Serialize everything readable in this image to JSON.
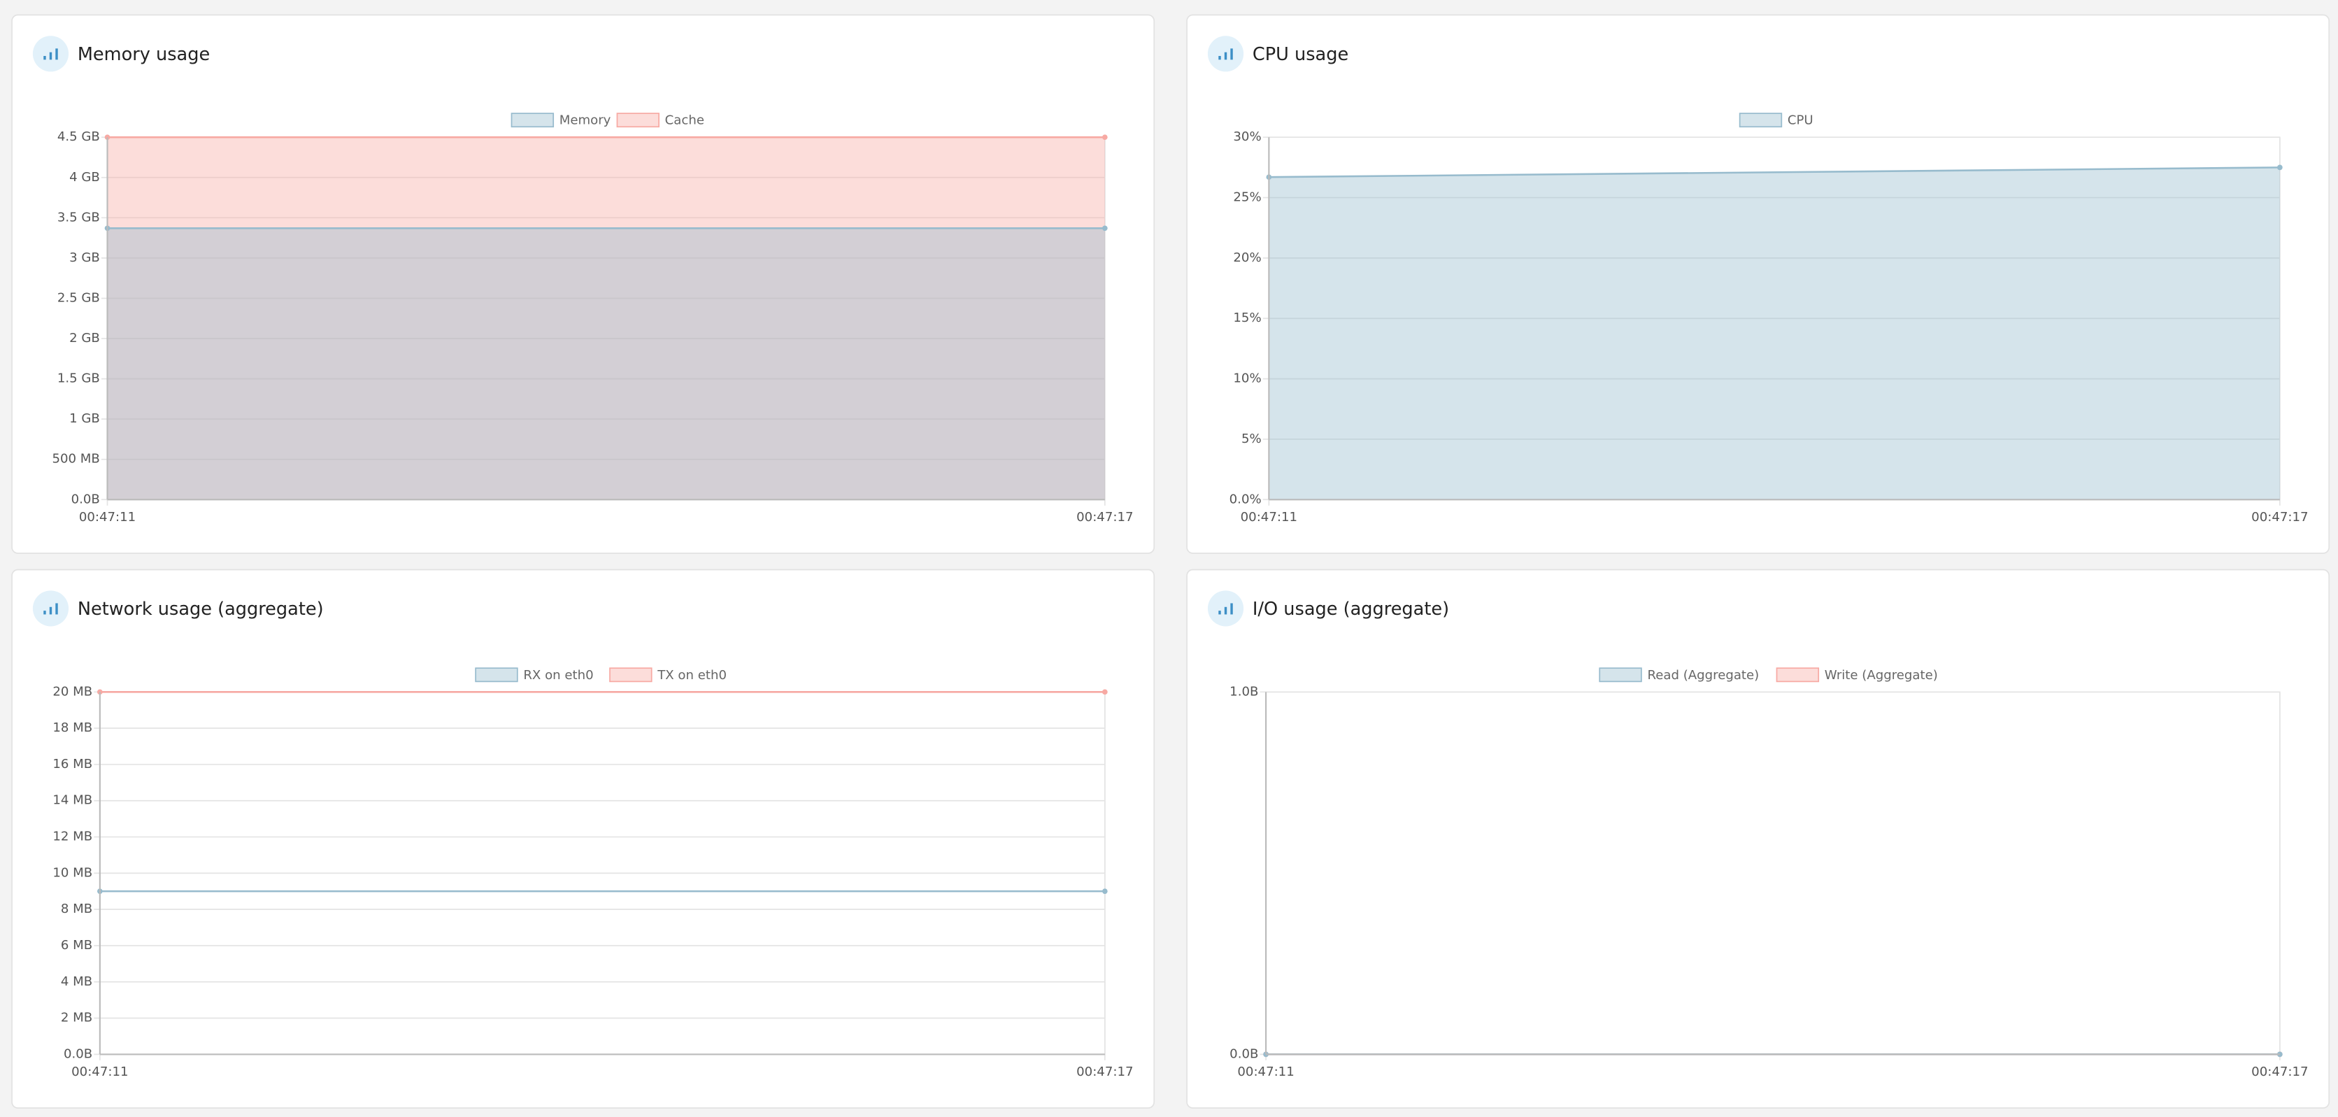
{
  "chart_data": [
    {
      "type": "line",
      "title": "Memory usage",
      "categories": [
        "00:47:11",
        "00:47:17"
      ],
      "series": [
        {
          "name": "Memory",
          "color": "#97bbcd",
          "fill": true,
          "values": [
            3.37,
            3.37
          ]
        },
        {
          "name": "Cache",
          "color": "#f7a9a3",
          "fill": true,
          "values": [
            4.5,
            4.5
          ]
        }
      ],
      "ylim": [
        0,
        4.5
      ],
      "yticks": [
        {
          "value": 0,
          "label": "0.0B"
        },
        {
          "value": 0.5,
          "label": "500 MB"
        },
        {
          "value": 1,
          "label": "1 GB"
        },
        {
          "value": 1.5,
          "label": "1.5 GB"
        },
        {
          "value": 2,
          "label": "2 GB"
        },
        {
          "value": 2.5,
          "label": "2.5 GB"
        },
        {
          "value": 3,
          "label": "3 GB"
        },
        {
          "value": 3.5,
          "label": "3.5 GB"
        },
        {
          "value": 4,
          "label": "4 GB"
        },
        {
          "value": 4.5,
          "label": "4.5 GB"
        }
      ],
      "grid": true
    },
    {
      "type": "line",
      "title": "CPU usage",
      "categories": [
        "00:47:11",
        "00:47:17"
      ],
      "series": [
        {
          "name": "CPU",
          "color": "#97bbcd",
          "fill": true,
          "values": [
            26.7,
            27.5
          ]
        }
      ],
      "ylim": [
        0,
        30
      ],
      "yticks": [
        {
          "value": 0,
          "label": "0.0%"
        },
        {
          "value": 5,
          "label": "5%"
        },
        {
          "value": 10,
          "label": "10%"
        },
        {
          "value": 15,
          "label": "15%"
        },
        {
          "value": 20,
          "label": "20%"
        },
        {
          "value": 25,
          "label": "25%"
        },
        {
          "value": 30,
          "label": "30%"
        }
      ],
      "grid": true
    },
    {
      "type": "line",
      "title": "Network usage (aggregate)",
      "categories": [
        "00:47:11",
        "00:47:17"
      ],
      "series": [
        {
          "name": "RX on eth0",
          "color": "#97bbcd",
          "fill": false,
          "values": [
            9,
            9
          ]
        },
        {
          "name": "TX on eth0",
          "color": "#f7a9a3",
          "fill": false,
          "values": [
            20,
            20
          ]
        }
      ],
      "ylim": [
        0,
        20
      ],
      "yticks": [
        {
          "value": 0,
          "label": "0.0B"
        },
        {
          "value": 2,
          "label": "2 MB"
        },
        {
          "value": 4,
          "label": "4 MB"
        },
        {
          "value": 6,
          "label": "6 MB"
        },
        {
          "value": 8,
          "label": "8 MB"
        },
        {
          "value": 10,
          "label": "10 MB"
        },
        {
          "value": 12,
          "label": "12 MB"
        },
        {
          "value": 14,
          "label": "14 MB"
        },
        {
          "value": 16,
          "label": "16 MB"
        },
        {
          "value": 18,
          "label": "18 MB"
        },
        {
          "value": 20,
          "label": "20 MB"
        }
      ],
      "grid": true
    },
    {
      "type": "line",
      "title": "I/O usage (aggregate)",
      "categories": [
        "00:47:11",
        "00:47:17"
      ],
      "series": [
        {
          "name": "Read (Aggregate)",
          "color": "#97bbcd",
          "fill": false,
          "values": [
            0,
            0
          ]
        },
        {
          "name": "Write (Aggregate)",
          "color": "#f7a9a3",
          "fill": false,
          "values": [
            0,
            0
          ]
        }
      ],
      "ylim": [
        0,
        1
      ],
      "yticks": [
        {
          "value": 0,
          "label": "0.0B"
        },
        {
          "value": 1,
          "label": "1.0B"
        }
      ],
      "grid": true
    }
  ]
}
